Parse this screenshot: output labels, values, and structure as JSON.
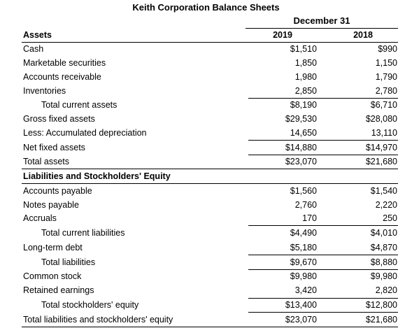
{
  "title": "Keith Corporation Balance Sheets",
  "period_label": "December 31",
  "header": {
    "section_label": "Assets",
    "year_1": "2019",
    "year_2": "2018"
  },
  "assets": [
    {
      "label": "Cash",
      "v2019": "$1,510",
      "v2018": "$990"
    },
    {
      "label": "Marketable securities",
      "v2019": "1,850",
      "v2018": "1,150"
    },
    {
      "label": "Accounts receivable",
      "v2019": "1,980",
      "v2018": "1,790"
    },
    {
      "label": "Inventories",
      "v2019": "2,850",
      "v2018": "2,780"
    },
    {
      "label": "Total current assets",
      "v2019": "$8,190",
      "v2018": "$6,710"
    },
    {
      "label": "Gross fixed assets",
      "v2019": "$29,530",
      "v2018": "$28,080"
    },
    {
      "label": "Less: Accumulated depreciation",
      "v2019": "14,650",
      "v2018": "13,110"
    },
    {
      "label": "Net fixed assets",
      "v2019": "$14,880",
      "v2018": "$14,970"
    },
    {
      "label": "Total assets",
      "v2019": "$23,070",
      "v2018": "$21,680"
    }
  ],
  "liabilities_heading": "Liabilities and Stockholders' Equity",
  "liabilities": [
    {
      "label": "Accounts payable",
      "v2019": "$1,560",
      "v2018": "$1,540"
    },
    {
      "label": "Notes payable",
      "v2019": "2,760",
      "v2018": "2,220"
    },
    {
      "label": "Accruals",
      "v2019": "170",
      "v2018": "250"
    },
    {
      "label": "Total current liabilities",
      "v2019": "$4,490",
      "v2018": "$4,010"
    },
    {
      "label": "Long-term debt",
      "v2019": "$5,180",
      "v2018": "$4,870"
    },
    {
      "label": "Total liabilities",
      "v2019": "$9,670",
      "v2018": "$8,880"
    },
    {
      "label": "Common stock",
      "v2019": "$9,980",
      "v2018": "$9,980"
    },
    {
      "label": "Retained earnings",
      "v2019": "3,420",
      "v2018": "2,820"
    },
    {
      "label": "Total stockholders' equity",
      "v2019": "$13,400",
      "v2018": "$12,800"
    },
    {
      "label": "Total liabilities and stockholders' equity",
      "v2019": "$23,070",
      "v2018": "$21,680"
    }
  ]
}
